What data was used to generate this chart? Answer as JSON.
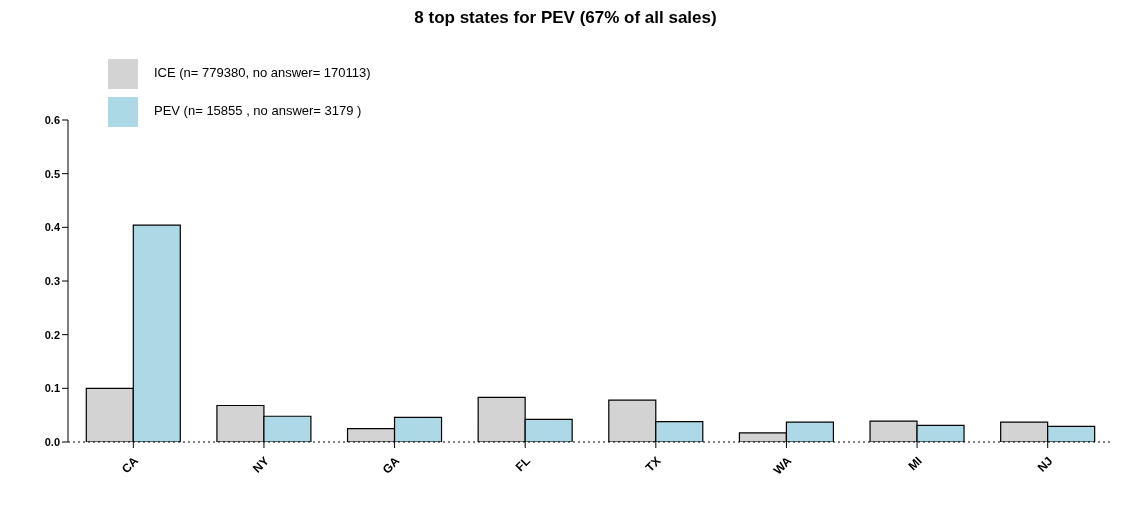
{
  "chart_data": {
    "type": "bar",
    "title": "8 top states for PEV (67% of all sales)",
    "categories": [
      "CA",
      "NY",
      "GA",
      "FL",
      "TX",
      "WA",
      "MI",
      "NJ"
    ],
    "series": [
      {
        "name": "ICE (n= 779380, no answer= 170113)",
        "color": "#d3d3d3",
        "values": [
          0.1,
          0.068,
          0.025,
          0.083,
          0.078,
          0.017,
          0.039,
          0.037
        ]
      },
      {
        "name": "PEV (n= 15855 , no answer= 3179 )",
        "color": "#add8e6",
        "values": [
          0.404,
          0.048,
          0.046,
          0.042,
          0.038,
          0.037,
          0.031,
          0.029
        ]
      }
    ],
    "ylim": [
      0,
      0.6
    ],
    "yticks": [
      {
        "value": 0,
        "label": "0.0"
      },
      0.1,
      0.2,
      0.3,
      0.4,
      0.5,
      0.6
    ],
    "ref_lines": [
      {
        "axis": "y",
        "value": 0,
        "line_style": "dotted",
        "color": "#000000"
      }
    ],
    "legend": "top left",
    "grid": false
  }
}
